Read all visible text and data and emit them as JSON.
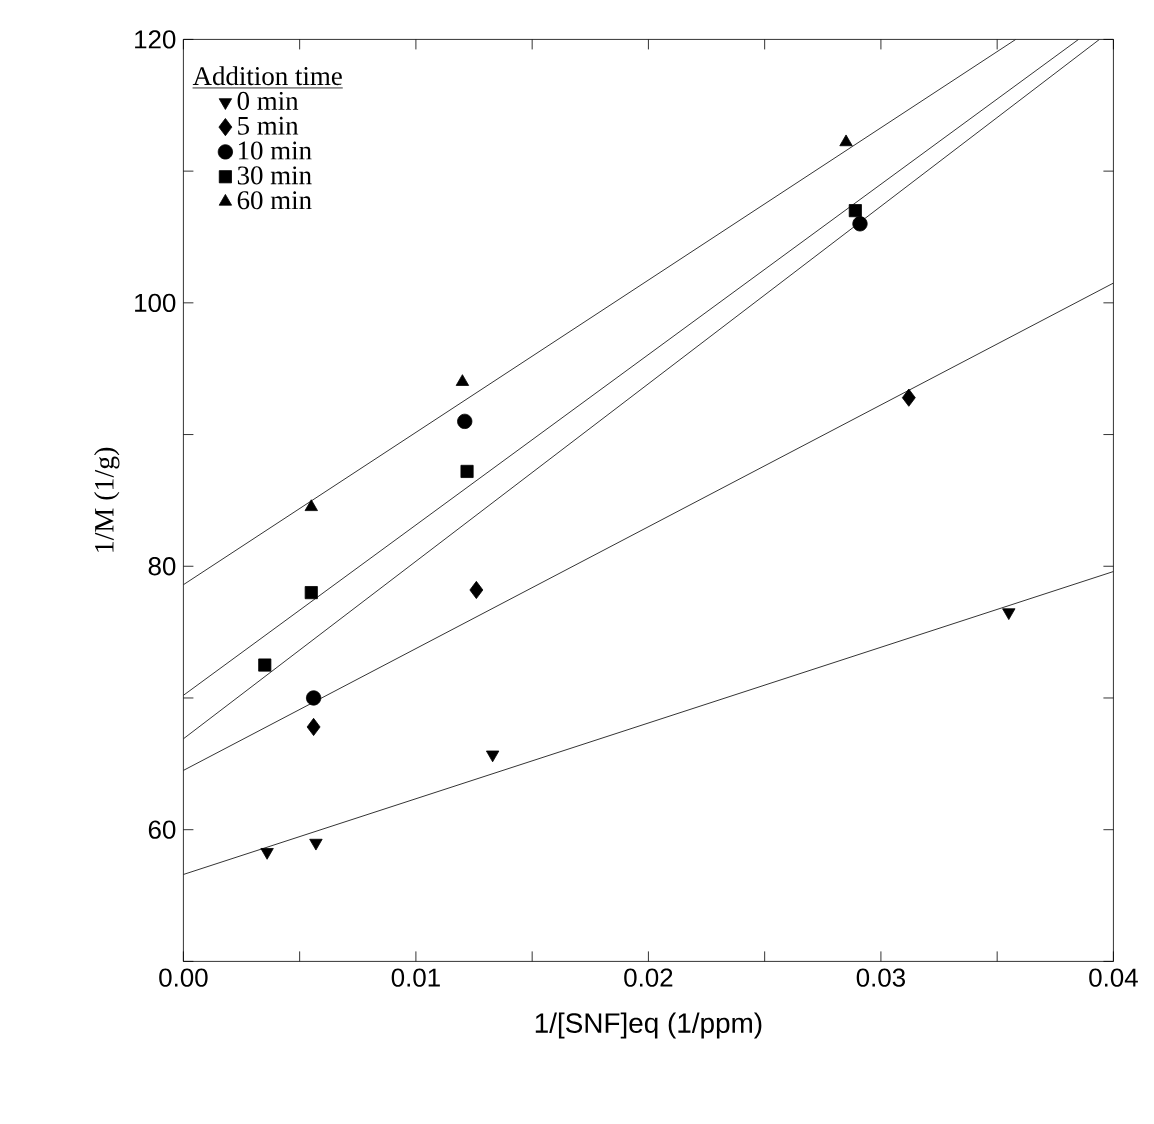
{
  "chart_data": {
    "type": "scatter",
    "xlabel": "1/[SNF]eq (1/ppm)",
    "ylabel": "1/M (1/g)",
    "legend_title": "Addition time",
    "legend": "top left",
    "grid": false,
    "xlim": [
      0,
      0.04
    ],
    "ylim": [
      50,
      120
    ],
    "xticks": [
      {
        "value": 0,
        "label": "0.00"
      },
      {
        "value": 0.005,
        "label": null
      },
      {
        "value": 0.01,
        "label": "0.01"
      },
      {
        "value": 0.015,
        "label": null
      },
      {
        "value": 0.02,
        "label": "0.02"
      },
      {
        "value": 0.025,
        "label": null
      },
      {
        "value": 0.03,
        "label": "0.03"
      },
      {
        "value": 0.035,
        "label": null
      },
      {
        "value": 0.04,
        "label": "0.04"
      }
    ],
    "yticks": [
      {
        "value": 50,
        "label": null
      },
      60,
      {
        "value": 70,
        "label": null
      },
      80,
      {
        "value": 90,
        "label": null
      },
      100,
      {
        "value": 110,
        "label": null
      },
      120
    ],
    "series": [
      {
        "name": "0  min",
        "marker": "triangle-down",
        "color": "#000000",
        "x": [
          0.0036,
          0.0057,
          0.0133,
          0.0355
        ],
        "values": [
          58.3,
          59.0,
          65.7,
          76.5
        ]
      },
      {
        "name": "5  min",
        "marker": "diamond",
        "color": "#000000",
        "x": [
          0.0056,
          0.0126,
          0.0312
        ],
        "values": [
          67.8,
          78.2,
          92.8
        ]
      },
      {
        "name": "10 min",
        "marker": "circle",
        "color": "#000000",
        "x": [
          0.0056,
          0.0121,
          0.0291
        ],
        "values": [
          70.0,
          91.0,
          106.0
        ]
      },
      {
        "name": "30 min",
        "marker": "square",
        "color": "#000000",
        "x": [
          0.0035,
          0.0055,
          0.0122,
          0.0289
        ],
        "values": [
          72.5,
          78.0,
          87.2,
          107.0
        ]
      },
      {
        "name": "60 min",
        "marker": "triangle",
        "color": "#000000",
        "x": [
          0.0055,
          0.012,
          0.0285
        ],
        "values": [
          84.5,
          94.0,
          112.2
        ]
      },
      {
        "type": "line",
        "marker": "none",
        "line_style": "solid",
        "color": "#000000",
        "x": [
          0,
          0.04
        ],
        "values": [
          56.6,
          79.6
        ]
      },
      {
        "type": "line",
        "marker": "none",
        "line_style": "solid",
        "color": "#000000",
        "x": [
          0,
          0.04
        ],
        "values": [
          64.5,
          101.5
        ]
      },
      {
        "type": "line",
        "marker": "none",
        "line_style": "solid",
        "color": "#000000",
        "x": [
          0,
          0.0394
        ],
        "values": [
          66.9,
          120
        ]
      },
      {
        "type": "line",
        "marker": "none",
        "line_style": "solid",
        "color": "#000000",
        "x": [
          0,
          0.0385
        ],
        "values": [
          70.2,
          120
        ]
      },
      {
        "type": "line",
        "marker": "none",
        "line_style": "solid",
        "color": "#000000",
        "x": [
          0,
          0.0358
        ],
        "values": [
          78.6,
          120
        ]
      }
    ]
  }
}
